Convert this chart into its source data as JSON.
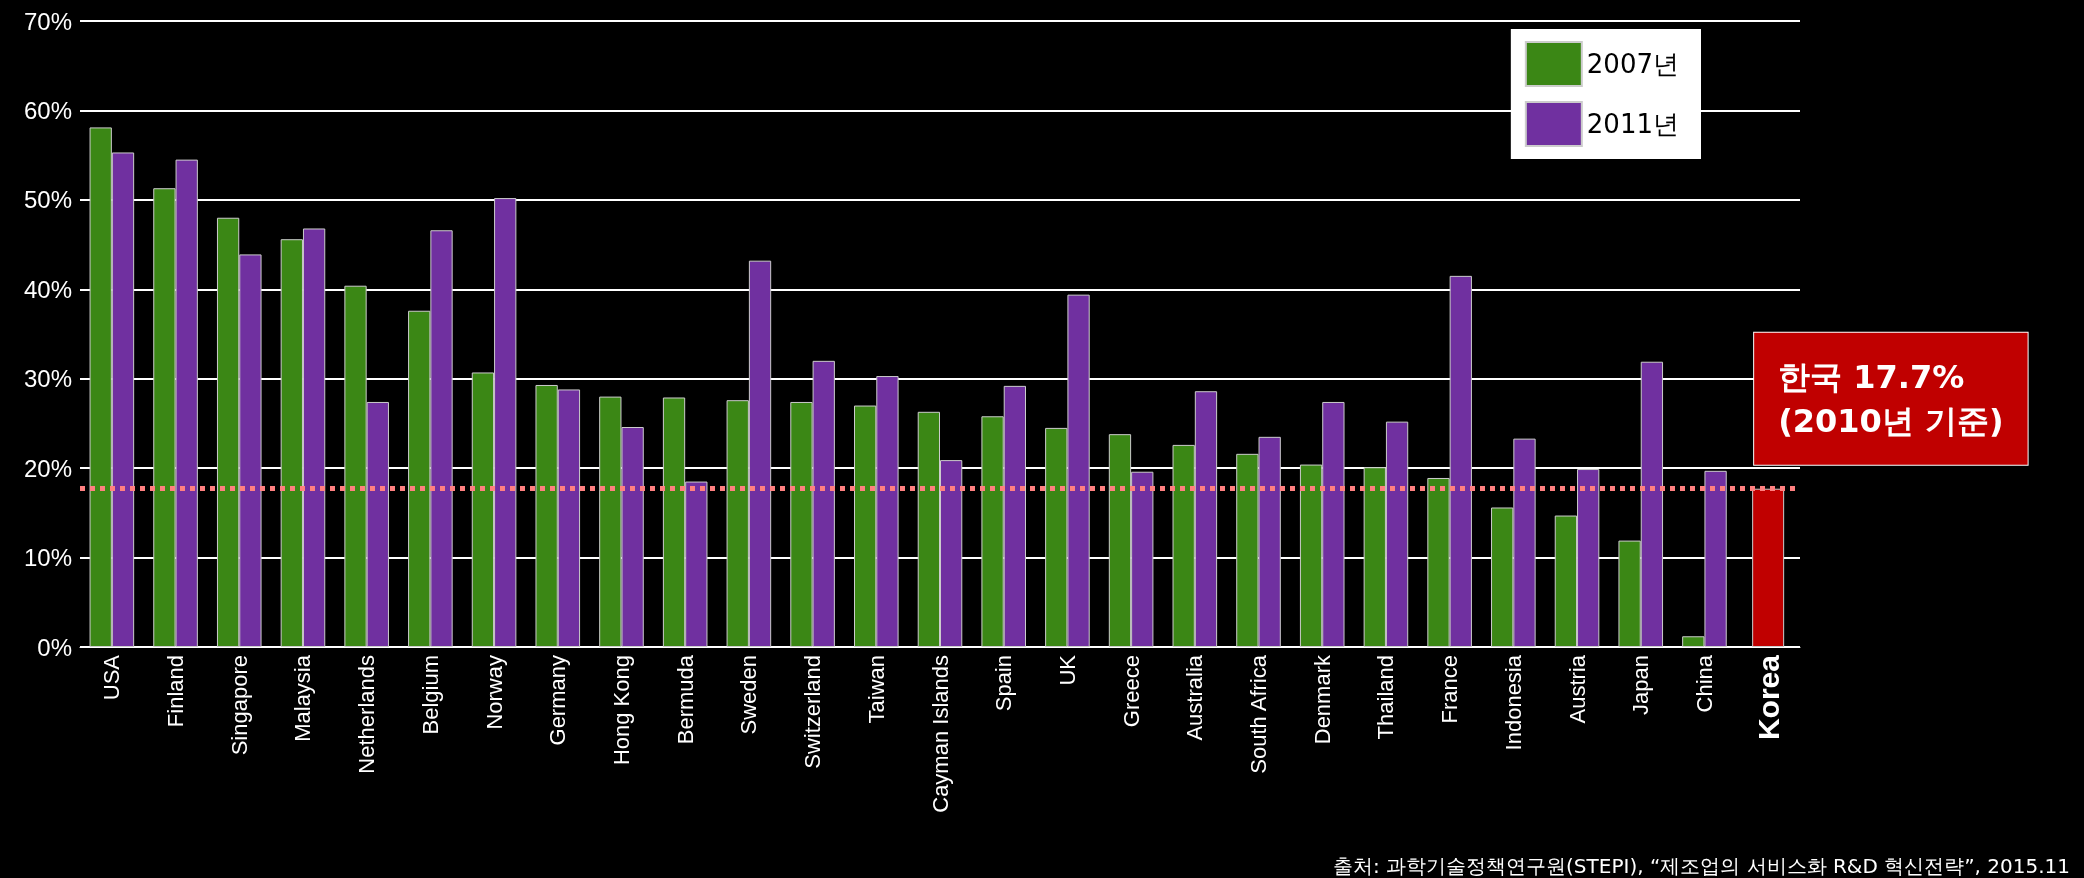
{
  "chart_data": {
    "type": "bar",
    "categories": [
      "USA",
      "Finland",
      "Singapore",
      "Malaysia",
      "Netherlands",
      "Belgium",
      "Norway",
      "Germany",
      "Hong Kong",
      "Bermuda",
      "Sweden",
      "Switzerland",
      "Taiwan",
      "Cayman Islands",
      "Spain",
      "UK",
      "Greece",
      "Australia",
      "South Africa",
      "Denmark",
      "Thailand",
      "France",
      "Indonesia",
      "Austria",
      "Japan",
      "China",
      "Korea"
    ],
    "series": [
      {
        "name": "2007년",
        "color": "#3b8715",
        "values": [
          58.1,
          51.3,
          48.0,
          45.6,
          40.4,
          37.6,
          30.7,
          29.3,
          28.0,
          27.9,
          27.6,
          27.4,
          27.0,
          26.3,
          25.8,
          24.5,
          23.8,
          22.6,
          21.6,
          20.4,
          20.1,
          18.9,
          15.6,
          14.7,
          11.9,
          1.2,
          null
        ]
      },
      {
        "name": "2011년",
        "color": "#7030a0",
        "values": [
          55.3,
          54.5,
          43.9,
          46.8,
          27.4,
          46.6,
          50.2,
          28.8,
          24.6,
          18.5,
          43.2,
          32.0,
          30.3,
          20.9,
          29.2,
          39.4,
          19.6,
          28.6,
          23.5,
          27.4,
          25.2,
          41.5,
          23.3,
          19.9,
          31.9,
          19.7,
          null
        ]
      },
      {
        "color": "#c00000",
        "values": [
          null,
          null,
          null,
          null,
          null,
          null,
          null,
          null,
          null,
          null,
          null,
          null,
          null,
          null,
          null,
          null,
          null,
          null,
          null,
          null,
          null,
          null,
          null,
          null,
          null,
          null,
          17.7
        ]
      }
    ],
    "ylim": [
      0,
      70
    ],
    "yticks": [
      {
        "value": 0,
        "label": "0%"
      },
      {
        "value": 10,
        "label": "10%"
      },
      {
        "value": 20,
        "label": "20%"
      },
      {
        "value": 30,
        "label": "30%"
      },
      {
        "value": 40,
        "label": "40%"
      },
      {
        "value": 50,
        "label": "50%"
      },
      {
        "value": 60,
        "label": "60%"
      },
      {
        "value": 70,
        "label": "70%"
      }
    ],
    "grid": "y",
    "legend": "top right",
    "ref_lines": [
      {
        "axis": "y",
        "value": 17.7,
        "color": "#ff8080",
        "line_style": "dotted"
      }
    ],
    "annotations": [
      {
        "text": "한국 17.7% (2010년 기준)",
        "x": "Korea",
        "y": 17.7
      },
      "출처: 과학기술정책연구원(STEPI), “제조업의 서비스화 R&D 혁신전략”, 2015.11"
    ]
  }
}
